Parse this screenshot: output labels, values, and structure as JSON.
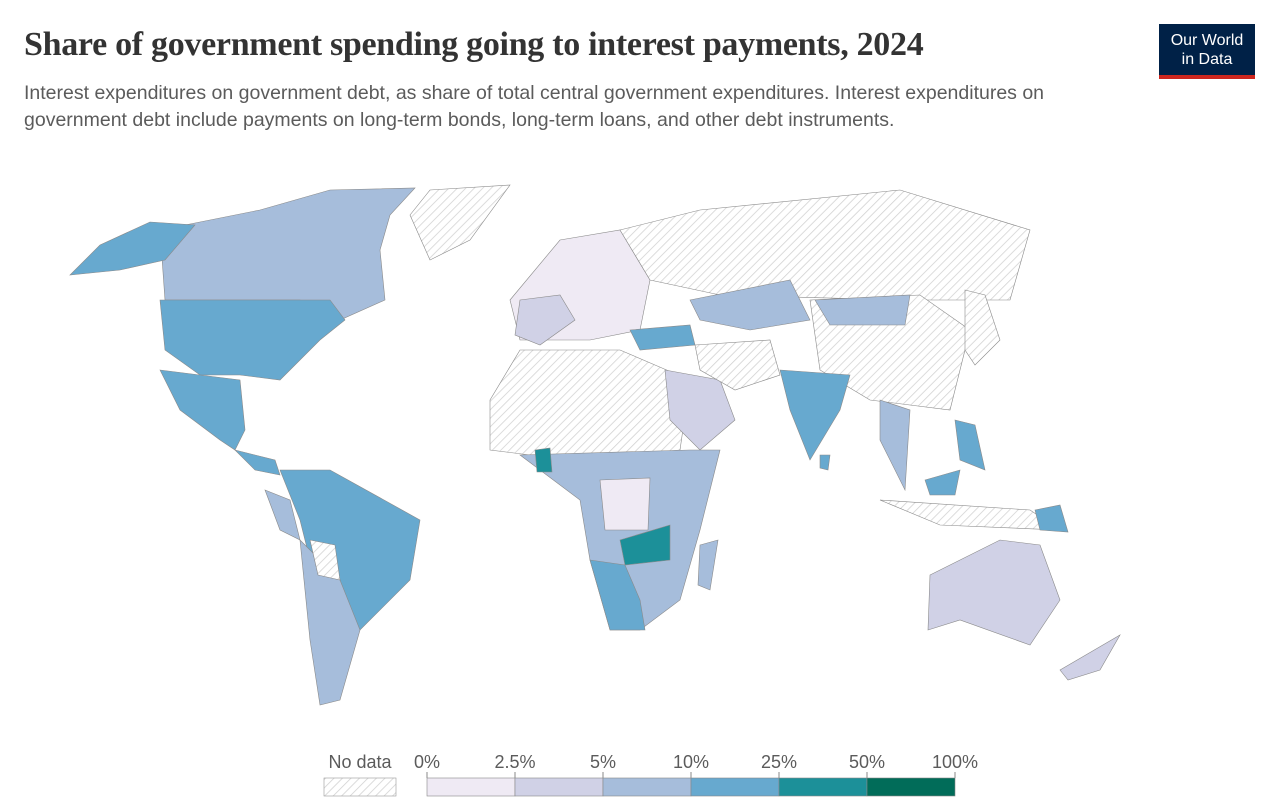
{
  "header": {
    "title": "Share of government spending going to interest payments, 2024",
    "subtitle": "Interest expenditures on government debt, as share of total central government expenditures. Interest expenditures on government debt include payments on long-term bonds, long-term loans, and other debt instruments."
  },
  "logo": {
    "line1": "Our World",
    "line2": "in Data"
  },
  "legend": {
    "no_data_label": "No data",
    "ticks": [
      {
        "value": 0,
        "label": "0%"
      },
      {
        "value": 2.5,
        "label": "2.5%"
      },
      {
        "value": 5,
        "label": "5%"
      },
      {
        "value": 10,
        "label": "10%"
      },
      {
        "value": 25,
        "label": "25%"
      },
      {
        "value": 50,
        "label": "50%"
      },
      {
        "value": 100,
        "label": "100%"
      }
    ],
    "colors": [
      "#efeaf4",
      "#d0d1e6",
      "#a6bddb",
      "#67a9cf",
      "#1c9099",
      "#016c59"
    ]
  }
}
